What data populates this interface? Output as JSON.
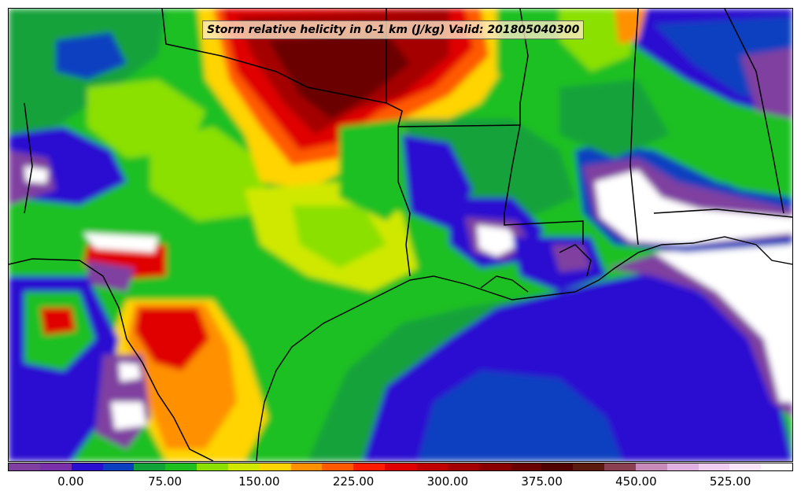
{
  "map": {
    "title": "Storm relative helicity in 0-1 km (J/kg) Valid: 201805040300"
  },
  "colorbar": {
    "levels": [
      -50,
      -25,
      0,
      25,
      50,
      75,
      100,
      125,
      150,
      175,
      200,
      225,
      250,
      275,
      300,
      325,
      350,
      375,
      400,
      425,
      450,
      475,
      500,
      525,
      550,
      575
    ],
    "colors": [
      "#7f3fa0",
      "#7a30a8",
      "#2a0fd0",
      "#0b3fc0",
      "#12a23a",
      "#1ec020",
      "#8be000",
      "#d0e800",
      "#ffd400",
      "#ff9000",
      "#ff5a00",
      "#ff1a00",
      "#e00000",
      "#c00000",
      "#a50000",
      "#8a0000",
      "#6a0000",
      "#500000",
      "#5a1a10",
      "#8a4050",
      "#c88ab8",
      "#e0b0e0",
      "#f2cdf2",
      "#f8e6f8",
      "#ffffff"
    ],
    "tick_labels": [
      "0.00",
      "75.00",
      "150.00",
      "225.00",
      "300.00",
      "375.00",
      "450.00",
      "525.00"
    ],
    "tick_values": [
      0,
      75,
      150,
      225,
      300,
      375,
      450,
      525
    ]
  }
}
